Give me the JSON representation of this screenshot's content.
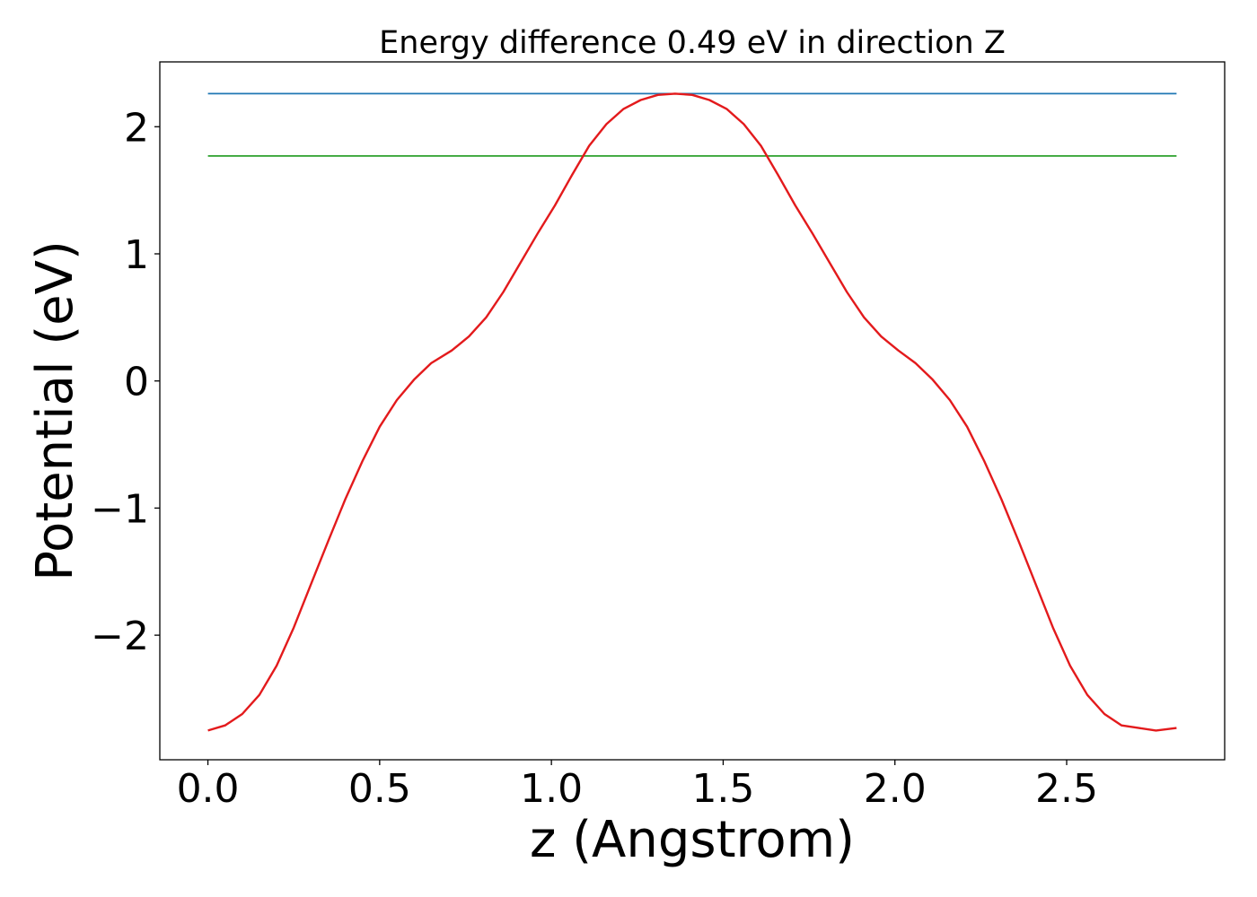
{
  "chart_data": {
    "type": "line",
    "title": "Energy difference 0.49 eV in direction Z",
    "xlabel": "z (Angstrom)",
    "ylabel": "Potential (eV)",
    "xlim": [
      -0.14,
      2.96
    ],
    "ylim": [
      -2.98,
      2.51
    ],
    "xticks": [
      0.0,
      0.5,
      1.0,
      1.5,
      2.0,
      2.5
    ],
    "xtick_labels": [
      "0.0",
      "0.5",
      "1.0",
      "1.5",
      "2.0",
      "2.5"
    ],
    "yticks": [
      -2,
      -1,
      0,
      1,
      2
    ],
    "ytick_labels": [
      "−2",
      "−1",
      "0",
      "1",
      "2"
    ],
    "grid": false,
    "series": [
      {
        "color": "#1f77b4",
        "x": [
          0.0,
          2.82
        ],
        "y": [
          2.26,
          2.26
        ]
      },
      {
        "color": "#2ca02c",
        "x": [
          0.0,
          2.82
        ],
        "y": [
          1.77,
          1.77
        ]
      },
      {
        "color": "#e31a1c",
        "x": [
          0.0,
          0.05,
          0.1,
          0.15,
          0.2,
          0.25,
          0.3,
          0.35,
          0.4,
          0.45,
          0.5,
          0.55,
          0.6,
          0.65,
          0.71,
          0.76,
          0.81,
          0.86,
          0.91,
          0.96,
          1.01,
          1.06,
          1.11,
          1.16,
          1.21,
          1.26,
          1.31,
          1.36,
          1.41,
          1.46,
          1.51,
          1.56,
          1.61,
          1.66,
          1.71,
          1.76,
          1.81,
          1.86,
          1.91,
          1.96,
          2.01,
          2.06,
          2.11,
          2.16,
          2.21,
          2.26,
          2.31,
          2.36,
          2.41,
          2.46,
          2.51,
          2.56,
          2.61,
          2.66,
          2.71,
          2.76,
          2.82
        ],
        "y": [
          -2.75,
          -2.71,
          -2.62,
          -2.47,
          -2.24,
          -1.94,
          -1.6,
          -1.26,
          -0.93,
          -0.63,
          -0.36,
          -0.15,
          0.01,
          0.14,
          0.24,
          0.35,
          0.5,
          0.7,
          0.93,
          1.16,
          1.38,
          1.62,
          1.85,
          2.02,
          2.14,
          2.21,
          2.25,
          2.26,
          2.25,
          2.21,
          2.14,
          2.02,
          1.85,
          1.62,
          1.38,
          1.16,
          0.93,
          0.7,
          0.5,
          0.35,
          0.24,
          0.14,
          0.01,
          -0.15,
          -0.36,
          -0.63,
          -0.93,
          -1.26,
          -1.6,
          -1.94,
          -2.24,
          -2.47,
          -2.62,
          -2.71,
          -2.73,
          -2.75,
          -2.73
        ]
      }
    ]
  }
}
